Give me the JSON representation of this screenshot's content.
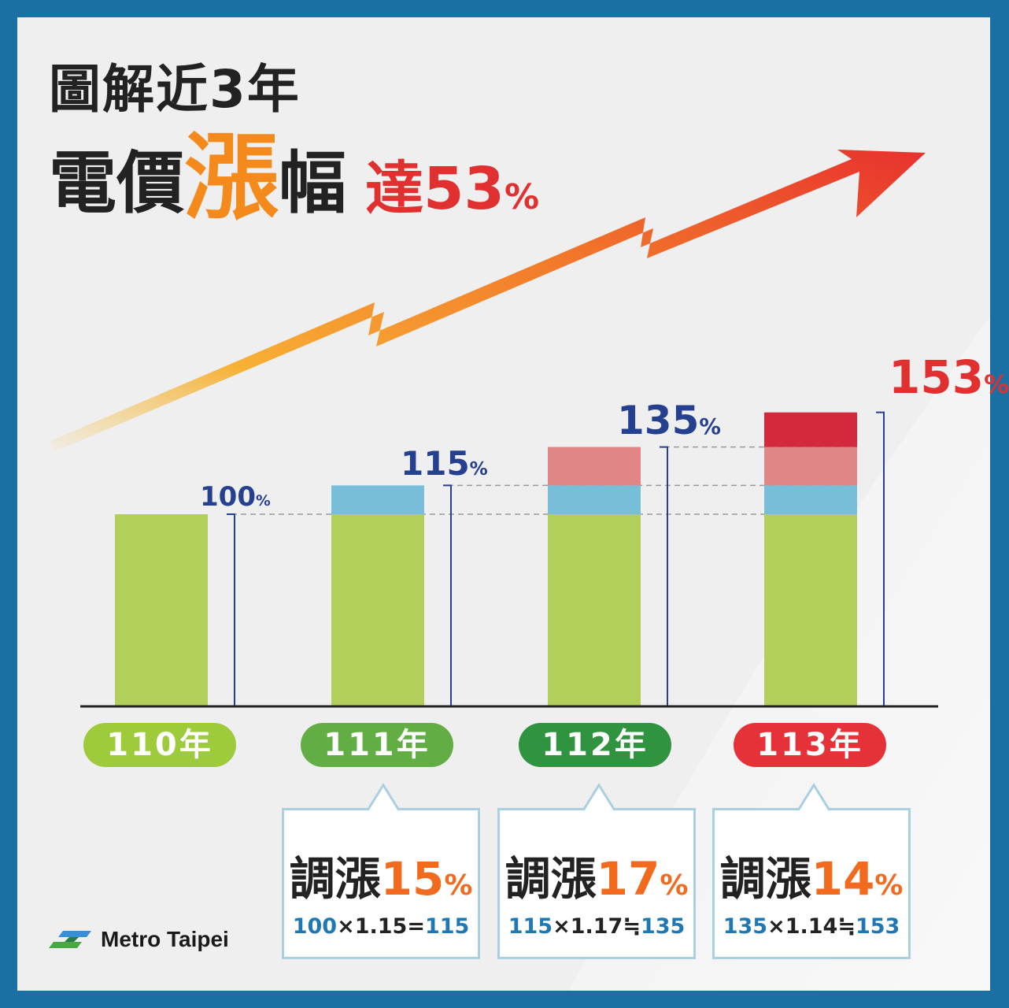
{
  "title": {
    "line1": "圖解近3年",
    "line2_a": "電價",
    "line2_b": "漲",
    "line2_c": "幅",
    "line2_d": "達53",
    "line2_pct": "%"
  },
  "chart_data": {
    "type": "bar",
    "stacked": true,
    "categories": [
      "110年",
      "111年",
      "112年",
      "113年"
    ],
    "values": [
      100,
      115,
      135,
      153
    ],
    "value_labels": [
      "100%",
      "115%",
      "135%",
      "153%"
    ],
    "segments": [
      [
        100
      ],
      [
        100,
        15
      ],
      [
        100,
        15,
        20
      ],
      [
        100,
        15,
        20,
        18
      ]
    ],
    "segment_colors": [
      "#b2cf5b",
      "#78bed8",
      "#e08686",
      "#d4293d"
    ],
    "ylim": [
      0,
      153
    ],
    "grid": false,
    "legend": "none"
  },
  "pills": [
    {
      "label": "110年",
      "color": "#9dcb3c"
    },
    {
      "label": "111年",
      "color": "#62ae45"
    },
    {
      "label": "112年",
      "color": "#2f9340"
    },
    {
      "label": "113年",
      "color": "#e53238"
    }
  ],
  "boxes": [
    {
      "prefix": "調漲",
      "rate": "15",
      "sym": "%",
      "a": "100",
      "op1": "×",
      "b": "1.15",
      "eq": "=",
      "c": "115"
    },
    {
      "prefix": "調漲",
      "rate": "17",
      "sym": "%",
      "a": "115",
      "op1": "×",
      "b": "1.17",
      "eq": "≒",
      "c": "135"
    },
    {
      "prefix": "調漲",
      "rate": "14",
      "sym": "%",
      "a": "135",
      "op1": "×",
      "b": "1.14",
      "eq": "≒",
      "c": "153"
    }
  ],
  "logo": {
    "text": "Metro Taipei",
    "icon": "metro-taipei-logo-icon"
  },
  "colors": {
    "frame": "#1a6fa3",
    "background": "#efefef",
    "arrow_start": "#f7c34a",
    "arrow_end": "#e8312e",
    "value_label": "#25408f",
    "highlight": "#e03030"
  }
}
